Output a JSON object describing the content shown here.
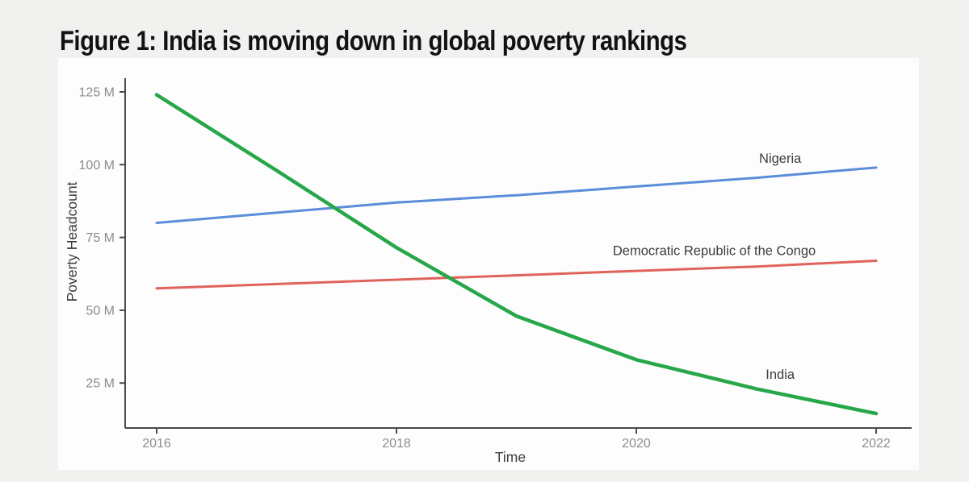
{
  "chart_data": {
    "type": "line",
    "title": "Figure 1: India is moving down in global poverty rankings",
    "xlabel": "Time",
    "ylabel": "Poverty Headcount",
    "x": [
      2016,
      2017,
      2018,
      2019,
      2020,
      2021,
      2022
    ],
    "series": [
      {
        "name": "Nigeria",
        "color": "#5b8dd9",
        "stroke_width": 3,
        "values": [
          80,
          83.5,
          87,
          89.5,
          92.5,
          95.5,
          99
        ],
        "label": "Nigeria",
        "label_x": 2021.2,
        "label_y": 102
      },
      {
        "name": "Democratic Republic of the Congo",
        "color": "#e0625c",
        "stroke_width": 3,
        "values": [
          57.5,
          59,
          60.5,
          62,
          63.5,
          65,
          67
        ],
        "label": "Democratic Republic of the Congo",
        "label_x": 2020.65,
        "label_y": 70.3
      },
      {
        "name": "India",
        "color": "#27a74a",
        "stroke_width": 4.5,
        "values": [
          124,
          98,
          71.5,
          48,
          33,
          23,
          14.5
        ],
        "label": "India",
        "label_x": 2021.2,
        "label_y": 27.8
      }
    ],
    "x_ticks": [
      {
        "value": 2016,
        "label": "2016"
      },
      {
        "value": 2018,
        "label": "2018"
      },
      {
        "value": 2020,
        "label": "2020"
      },
      {
        "value": 2022,
        "label": "2022"
      }
    ],
    "y_ticks": [
      {
        "value": 125,
        "label": "125 M"
      },
      {
        "value": 100,
        "label": "100 M"
      },
      {
        "value": 75,
        "label": "75 M"
      },
      {
        "value": 50,
        "label": "50 M"
      },
      {
        "value": 25,
        "label": "25 M"
      }
    ],
    "ylim": [
      10,
      130
    ],
    "xlim": [
      2016,
      2022
    ],
    "grid": false,
    "legend_position": "direct-labels-right",
    "colors": {
      "axis_line": "#4a4a4a",
      "tick_label": "#8c8c8c",
      "axis_title": "#3c3c3c",
      "series_label": "#3c3c3c",
      "title": "#121212",
      "page_background": "#f1f1ef",
      "panel_background": "#fdfdfd"
    }
  }
}
